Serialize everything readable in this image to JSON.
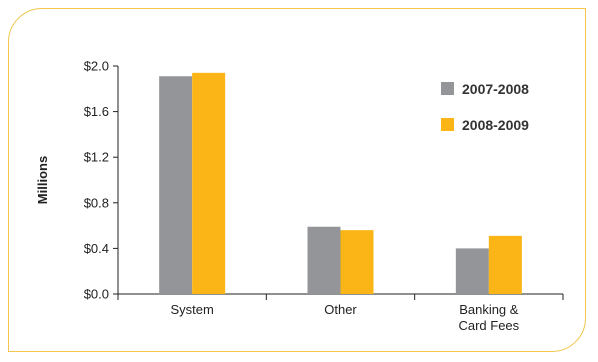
{
  "chart_data": {
    "type": "bar",
    "ylabel": "Millions",
    "ylim": [
      0,
      2.0
    ],
    "yticks": [
      0,
      0.4,
      0.8,
      1.2,
      1.6,
      2.0
    ],
    "ytick_labels": [
      "$0.0",
      "$0.4",
      "$0.8",
      "$1.2",
      "$1.6",
      "$2.0"
    ],
    "categories": [
      {
        "lines": [
          "System"
        ]
      },
      {
        "lines": [
          "Other"
        ]
      },
      {
        "lines": [
          "Banking &",
          "Card Fees"
        ]
      }
    ],
    "series": [
      {
        "name": "2007-2008",
        "color": "#939598",
        "values": [
          1.91,
          0.59,
          0.4
        ]
      },
      {
        "name": "2008-2009",
        "color": "#fbb516",
        "values": [
          1.94,
          0.56,
          0.51
        ]
      }
    ],
    "legend": "top-right",
    "grid": false
  }
}
